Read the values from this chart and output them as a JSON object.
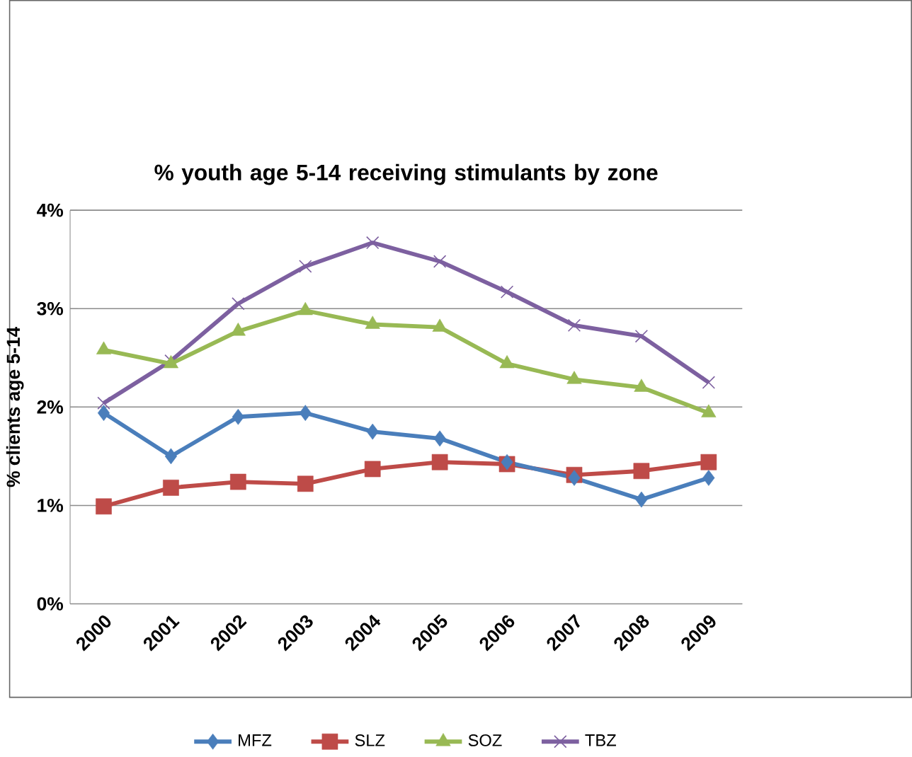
{
  "chart_data": {
    "type": "line",
    "title": "% youth age 5-14 receiving stimulants  by zone",
    "ylabel": "% clients age 5-14",
    "categories": [
      "2000",
      "2001",
      "2002",
      "2003",
      "2004",
      "2005",
      "2006",
      "2007",
      "2008",
      "2009"
    ],
    "series": [
      {
        "name": "MFZ",
        "color": "#4a7ebb",
        "marker": "diamond",
        "values": [
          1.94,
          1.5,
          1.9,
          1.94,
          1.75,
          1.68,
          1.44,
          1.28,
          1.06,
          1.28
        ]
      },
      {
        "name": "SLZ",
        "color": "#be4b48",
        "marker": "square",
        "values": [
          0.99,
          1.18,
          1.24,
          1.22,
          1.37,
          1.44,
          1.42,
          1.31,
          1.35,
          1.44
        ]
      },
      {
        "name": "SOZ",
        "color": "#98b954",
        "marker": "triangle",
        "values": [
          2.58,
          2.44,
          2.77,
          2.98,
          2.84,
          2.81,
          2.44,
          2.28,
          2.2,
          1.94
        ]
      },
      {
        "name": "TBZ",
        "color": "#7d60a0",
        "marker": "cross",
        "values": [
          2.04,
          2.47,
          3.05,
          3.43,
          3.67,
          3.48,
          3.17,
          2.83,
          2.72,
          2.25
        ]
      }
    ],
    "ylim": [
      0,
      4
    ],
    "yticks": [
      {
        "value": 0,
        "label": "0%"
      },
      {
        "value": 1,
        "label": "1%"
      },
      {
        "value": 2,
        "label": "2%"
      },
      {
        "value": 3,
        "label": "3%"
      },
      {
        "value": 4,
        "label": "4%"
      }
    ],
    "grid": "y",
    "legend": "bottom",
    "line_style": "solid"
  }
}
